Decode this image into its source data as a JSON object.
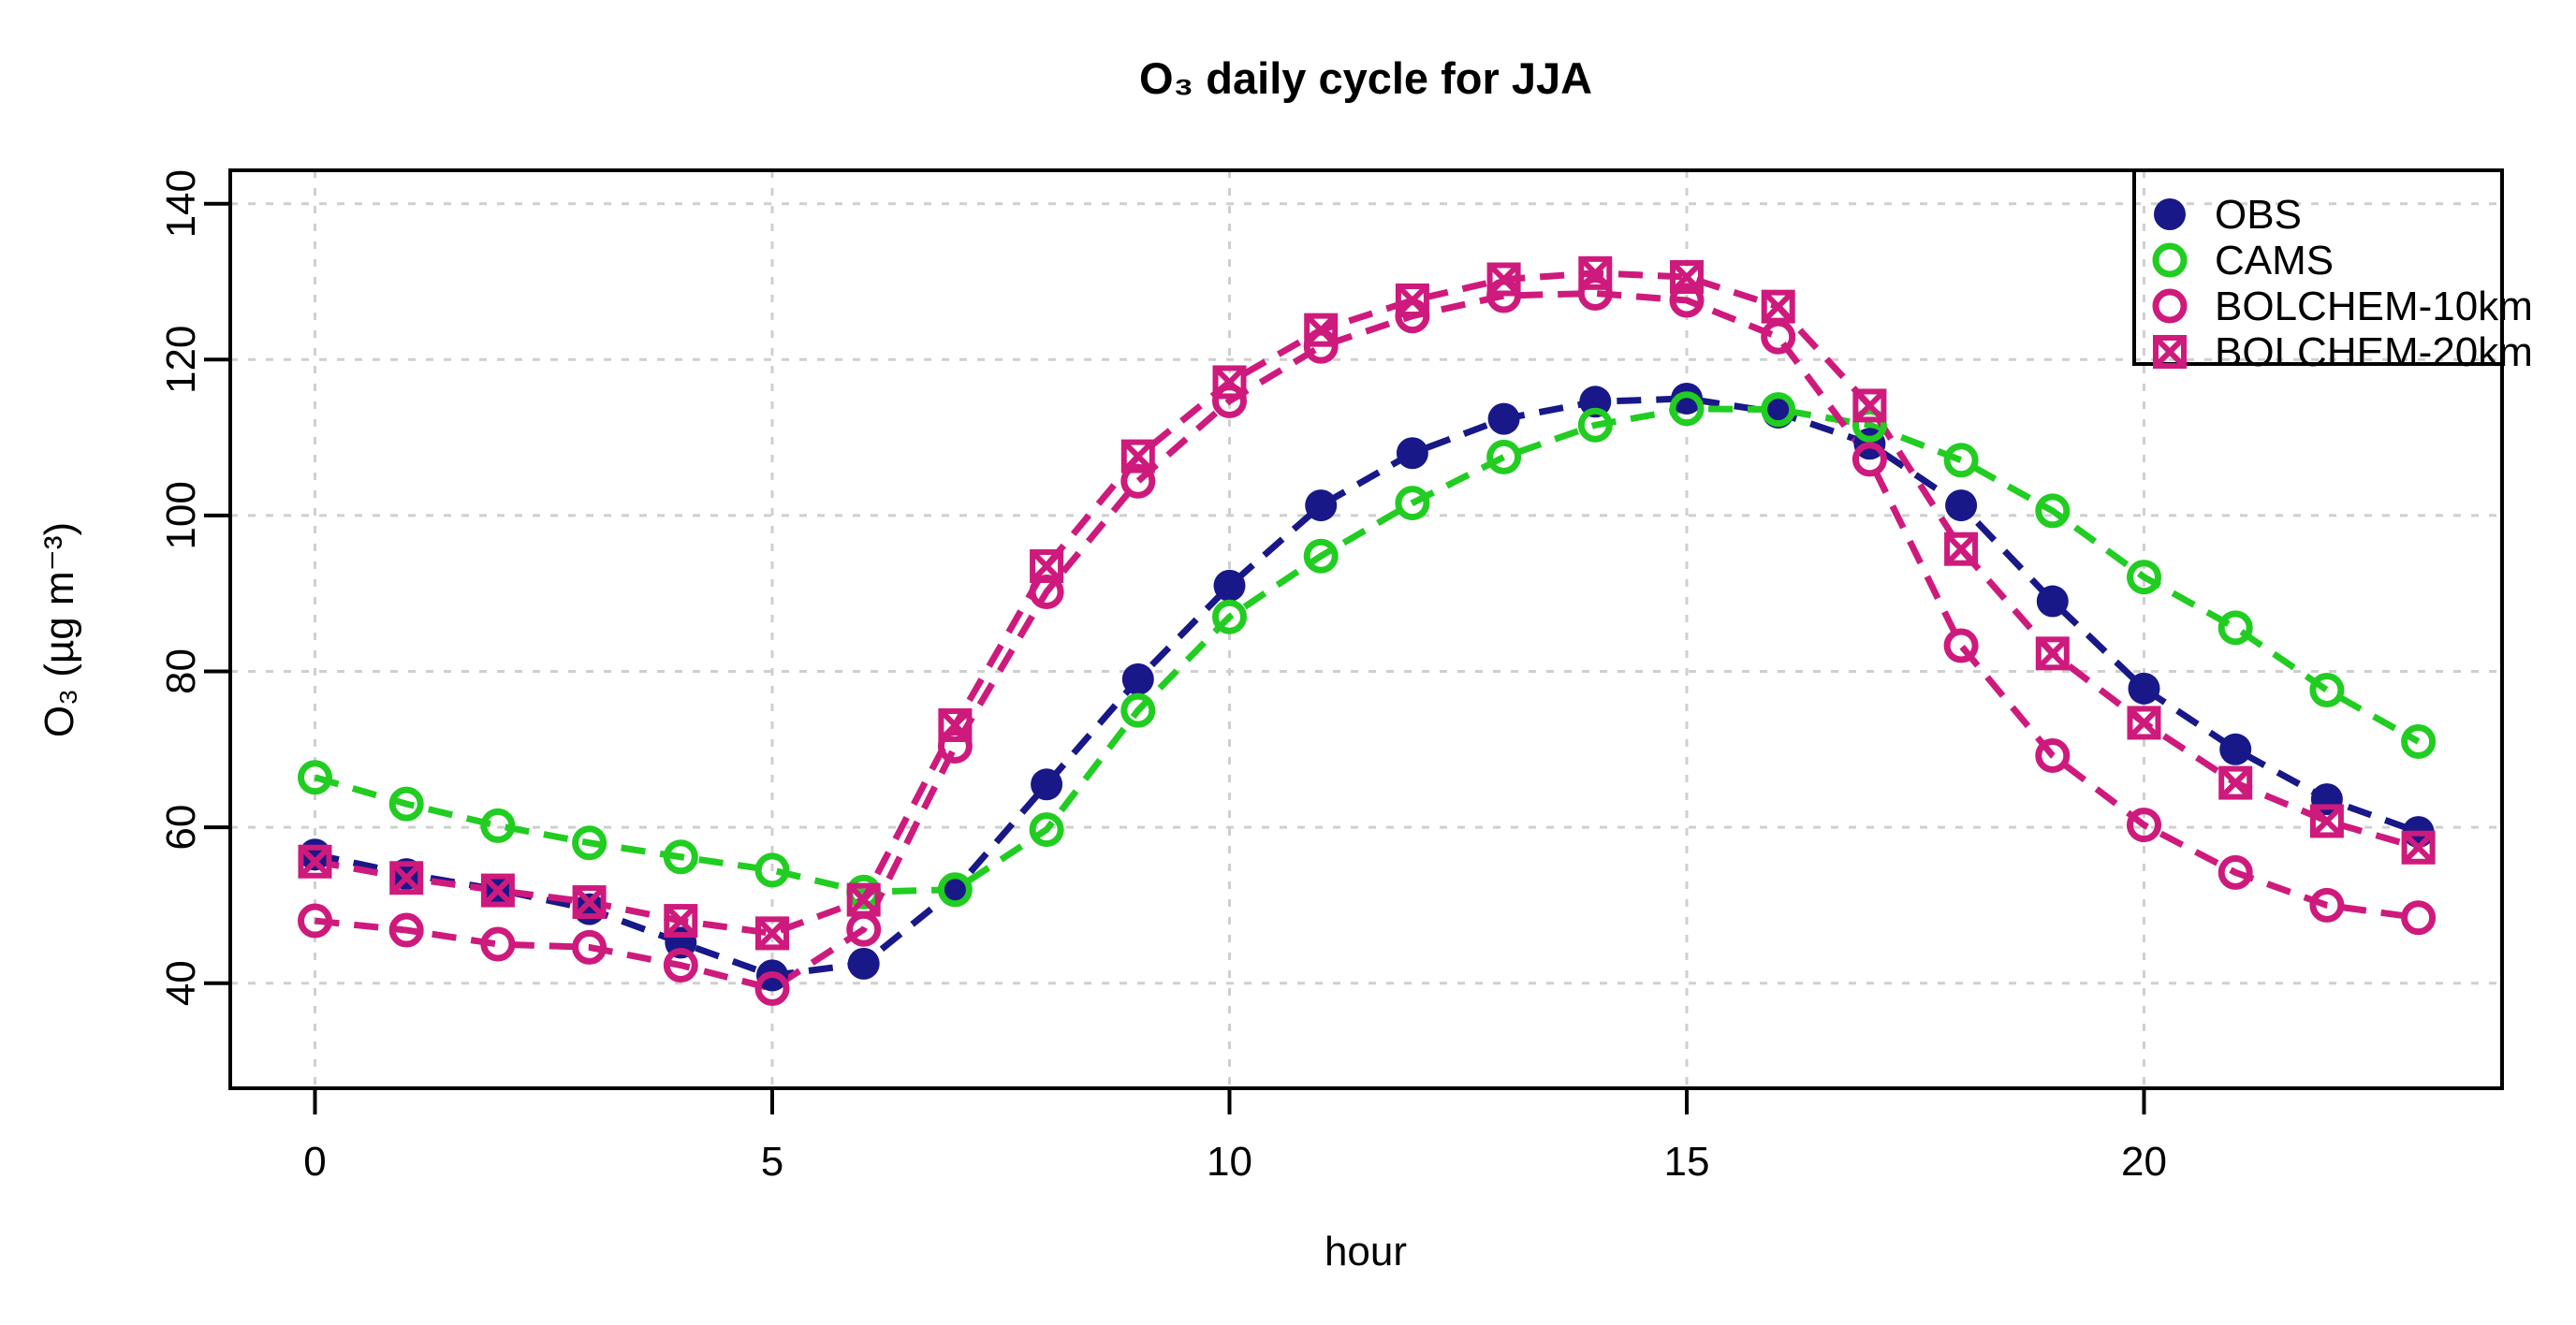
{
  "chart_data": {
    "type": "line",
    "title": "O₃ daily cycle for JJA",
    "xlabel": "hour",
    "ylabel": "O₃ (µg m⁻³)",
    "x": [
      0,
      1,
      2,
      3,
      4,
      5,
      6,
      7,
      8,
      9,
      10,
      11,
      12,
      13,
      14,
      15,
      16,
      17,
      18,
      19,
      20,
      21,
      22,
      23
    ],
    "x_ticks": [
      0,
      5,
      10,
      15,
      20
    ],
    "y_ticks": [
      40,
      60,
      80,
      100,
      120,
      140
    ],
    "xlim": [
      -0.92,
      23.92
    ],
    "ylim": [
      26.5,
      144.3
    ],
    "grid": true,
    "grid_style": "dotted",
    "line_style": "dashed",
    "legend_position": "top-right",
    "series": [
      {
        "name": "OBS",
        "marker": "filled-circle",
        "color": "#181889",
        "values": [
          56.5,
          54.0,
          52.0,
          49.5,
          45.2,
          41.0,
          42.5,
          52.0,
          65.5,
          79.0,
          91.0,
          101.3,
          108.0,
          112.4,
          114.6,
          115.0,
          113.2,
          109.2,
          101.3,
          89.0,
          77.8,
          70.0,
          63.6,
          59.4
        ]
      },
      {
        "name": "CAMS",
        "marker": "open-circle",
        "color": "#21cd21",
        "values": [
          66.4,
          63.0,
          60.2,
          58.0,
          56.2,
          54.5,
          51.7,
          52.0,
          59.7,
          75.0,
          87.0,
          94.8,
          101.6,
          107.5,
          111.6,
          113.7,
          113.6,
          111.6,
          107.1,
          100.6,
          92.1,
          85.6,
          77.6,
          71.0
        ]
      },
      {
        "name": "BOLCHEM-10km",
        "marker": "open-circle",
        "color": "#ce1a7c",
        "values": [
          48.0,
          46.8,
          45.0,
          44.6,
          42.3,
          39.3,
          46.9,
          70.4,
          90.2,
          104.4,
          114.7,
          121.7,
          125.6,
          128.2,
          128.5,
          127.6,
          122.9,
          107.2,
          83.3,
          69.2,
          60.3,
          54.2,
          50.0,
          48.4
        ]
      },
      {
        "name": "BOLCHEM-20km",
        "marker": "square-x",
        "color": "#ce1a7c",
        "values": [
          55.6,
          53.5,
          51.9,
          50.4,
          48.0,
          46.4,
          50.7,
          73.1,
          93.5,
          107.6,
          117.1,
          123.8,
          127.6,
          130.3,
          131.1,
          130.6,
          126.8,
          114.1,
          95.7,
          82.3,
          73.4,
          65.7,
          60.8,
          57.4
        ]
      }
    ]
  },
  "legend": {
    "items": [
      {
        "label": "OBS"
      },
      {
        "label": "CAMS"
      },
      {
        "label": "BOLCHEM-10km"
      },
      {
        "label": "BOLCHEM-20km"
      }
    ]
  },
  "colors": {
    "background": "#ffffff",
    "axis": "#000000",
    "grid": "#cfcfcf",
    "obs": "#181889",
    "cams": "#21cd21",
    "bolchem": "#ce1a7c"
  }
}
